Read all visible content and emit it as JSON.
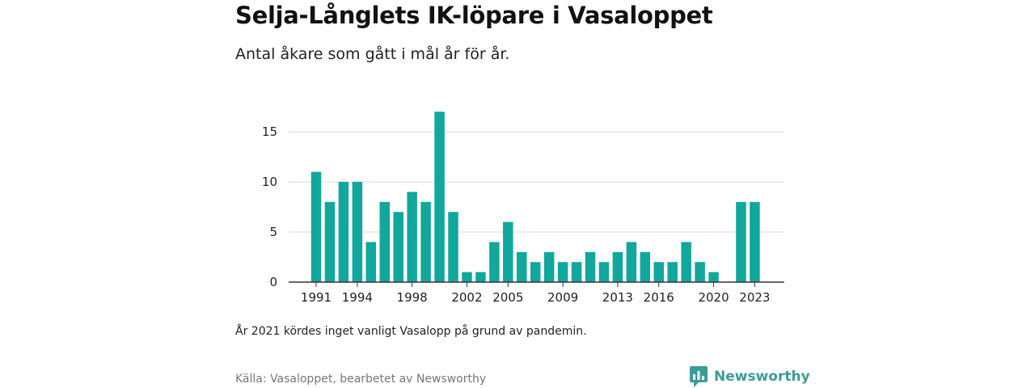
{
  "header": {
    "title": "Selja-Långlets IK-löpare i Vasaloppet",
    "subtitle": "Antal åkare som gått i mål år för år."
  },
  "footer": {
    "note": "År 2021 kördes inget vanligt Vasalopp på grund av pandemin.",
    "source": "Källa: Vasaloppet, bearbetet av Newsworthy",
    "brand": "Newsworthy"
  },
  "colors": {
    "bar": "#11a79c",
    "grid": "#d9d9d9",
    "axis": "#333333",
    "brand": "#3a9d98"
  },
  "chart_data": {
    "type": "bar",
    "categories": [
      1991,
      1992,
      1993,
      1994,
      1995,
      1996,
      1997,
      1998,
      1999,
      2000,
      2001,
      2002,
      2003,
      2004,
      2005,
      2006,
      2007,
      2008,
      2009,
      2010,
      2011,
      2012,
      2013,
      2014,
      2015,
      2016,
      2017,
      2018,
      2019,
      2020,
      2021,
      2022,
      2023
    ],
    "values": [
      11,
      8,
      10,
      10,
      4,
      8,
      7,
      9,
      8,
      17,
      7,
      1,
      1,
      4,
      6,
      3,
      2,
      3,
      2,
      2,
      3,
      2,
      3,
      4,
      3,
      2,
      2,
      4,
      2,
      1,
      null,
      8,
      8
    ],
    "title": "Selja-Långlets IK-löpare i Vasaloppet",
    "subtitle": "Antal åkare som gått i mål år för år.",
    "ylim": [
      0,
      17
    ],
    "y_ticks": [
      0,
      5,
      10,
      15
    ],
    "x_tick_labels": [
      1991,
      1994,
      1998,
      2002,
      2005,
      2009,
      2013,
      2016,
      2020,
      2023
    ],
    "grid": "horizontal",
    "legend": "none"
  }
}
